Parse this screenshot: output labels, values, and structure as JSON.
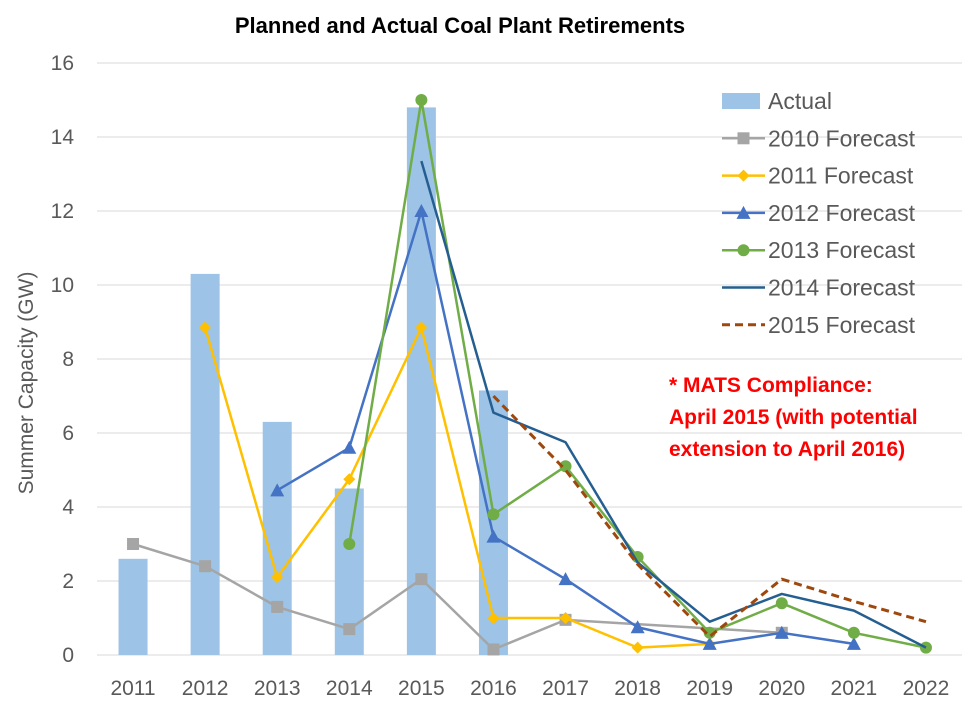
{
  "chart_data": {
    "type": "bar+line",
    "title": "Planned and Actual Coal Plant Retirements",
    "xlabel": "",
    "ylabel": "Summer Capacity (GW)",
    "ylim": [
      0,
      16
    ],
    "yticks": [
      0,
      2,
      4,
      6,
      8,
      10,
      12,
      14,
      16
    ],
    "grid": true,
    "legend_position": "top-right",
    "categories": [
      "2011",
      "2012",
      "2013",
      "2014",
      "2015",
      "2016",
      "2017",
      "2018",
      "2019",
      "2020",
      "2021",
      "2022"
    ],
    "series": [
      {
        "name": "Actual",
        "kind": "bar",
        "color": "#9dc3e6",
        "marker": "none",
        "dash": false,
        "values": [
          2.6,
          10.3,
          6.3,
          4.5,
          14.8,
          7.15,
          null,
          null,
          null,
          null,
          null,
          null
        ]
      },
      {
        "name": "2010 Forecast",
        "kind": "line",
        "color": "#a5a5a5",
        "marker": "square",
        "dash": false,
        "values": [
          3.0,
          2.4,
          1.3,
          0.7,
          2.05,
          0.15,
          0.95,
          null,
          null,
          0.6,
          null,
          null
        ]
      },
      {
        "name": "2011 Forecast",
        "kind": "line",
        "color": "#ffc000",
        "marker": "diamond",
        "dash": false,
        "values": [
          null,
          8.85,
          2.1,
          4.75,
          8.85,
          1.0,
          1.0,
          0.2,
          0.3,
          null,
          null,
          null
        ]
      },
      {
        "name": "2012 Forecast",
        "kind": "line",
        "color": "#4472c4",
        "marker": "triangle",
        "dash": false,
        "values": [
          null,
          null,
          4.45,
          5.6,
          12.0,
          3.2,
          2.05,
          0.75,
          0.3,
          0.6,
          0.3,
          null
        ]
      },
      {
        "name": "2013 Forecast",
        "kind": "line",
        "color": "#70ad47",
        "marker": "circle",
        "dash": false,
        "values": [
          null,
          null,
          null,
          3.0,
          15.0,
          3.8,
          5.1,
          2.65,
          0.6,
          1.4,
          0.6,
          0.2
        ]
      },
      {
        "name": "2014 Forecast",
        "kind": "line",
        "color": "#255e91",
        "marker": "none",
        "dash": false,
        "values": [
          null,
          null,
          null,
          null,
          13.35,
          6.55,
          5.75,
          2.5,
          0.9,
          1.65,
          1.2,
          0.2
        ]
      },
      {
        "name": "2015 Forecast",
        "kind": "line",
        "color": "#9e480e",
        "marker": "none",
        "dash": true,
        "values": [
          null,
          null,
          null,
          null,
          null,
          7.0,
          5.0,
          2.45,
          0.5,
          2.05,
          1.45,
          0.9
        ]
      }
    ],
    "annotation": [
      "* MATS Compliance:",
      "April 2015 (with potential",
      "extension to April 2016)"
    ],
    "annotation_color": "#ff0000"
  }
}
